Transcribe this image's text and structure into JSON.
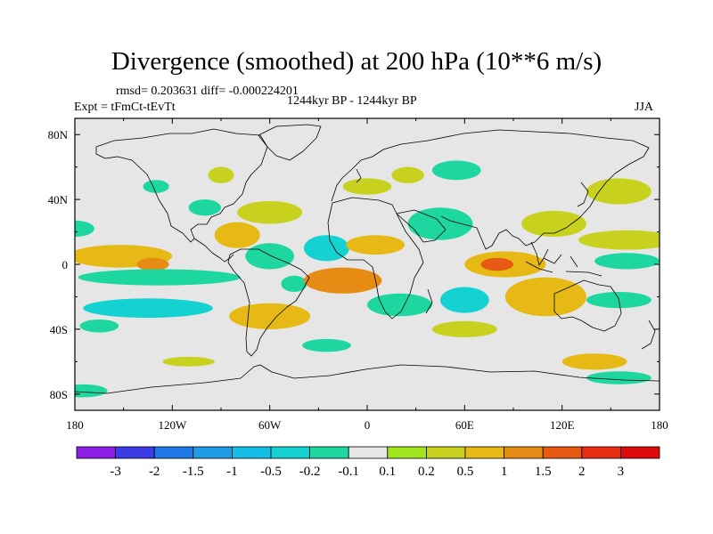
{
  "chart_data": {
    "type": "heatmap",
    "title": "Divergence (smoothed) at 200 hPa (10**6 m/s)",
    "stats": "rmsd= 0.203631 diff= -0.000224201",
    "experiment": "Expt = tFmCt-tEvTt",
    "period": "1244kyr BP - 1244kyr BP",
    "season": "JJA",
    "x_axis": {
      "range": [
        -180,
        180
      ],
      "ticks": [
        -180,
        -120,
        -60,
        0,
        60,
        120,
        180
      ],
      "tick_labels": [
        "180",
        "120W",
        "60W",
        "0",
        "60E",
        "120E",
        "180"
      ]
    },
    "y_axis": {
      "range": [
        -90,
        90
      ],
      "ticks": [
        80,
        40,
        0,
        -40,
        -80
      ],
      "tick_labels": [
        "80N",
        "40N",
        "0",
        "40S",
        "80S"
      ]
    },
    "colorbar": {
      "labels": [
        "-3",
        "-2",
        "-1.5",
        "-1",
        "-0.5",
        "-0.2",
        "-0.1",
        "0.1",
        "0.2",
        "0.5",
        "1",
        "1.5",
        "2",
        "3"
      ],
      "colors": [
        "#8c1ee6",
        "#3c3ce6",
        "#1e78e6",
        "#1e9ae6",
        "#14bee6",
        "#14d2d2",
        "#1ed7a0",
        "#e6e6e6",
        "#a0e61e",
        "#c8d21e",
        "#e6b914",
        "#e68c14",
        "#e65a14",
        "#e62d14",
        "#dc0a0a"
      ]
    },
    "features": [
      {
        "lon": -180,
        "lat": 22,
        "rx": 12,
        "ry": 5,
        "level": -0.2
      },
      {
        "lon": -152,
        "lat": 5,
        "rx": 32,
        "ry": 7,
        "level": 0.5
      },
      {
        "lon": -132,
        "lat": 0,
        "rx": 10,
        "ry": 4,
        "level": 1.0
      },
      {
        "lon": -128,
        "lat": -8,
        "rx": 50,
        "ry": 5,
        "level": -0.2
      },
      {
        "lon": -135,
        "lat": -27,
        "rx": 40,
        "ry": 6,
        "level": -0.5
      },
      {
        "lon": -165,
        "lat": -38,
        "rx": 12,
        "ry": 4,
        "level": -0.2
      },
      {
        "lon": -110,
        "lat": -60,
        "rx": 16,
        "ry": 3,
        "level": 0.2
      },
      {
        "lon": -80,
        "lat": 18,
        "rx": 14,
        "ry": 8,
        "level": 0.5
      },
      {
        "lon": -60,
        "lat": 5,
        "rx": 15,
        "ry": 8,
        "level": -0.2
      },
      {
        "lon": -60,
        "lat": 32,
        "rx": 20,
        "ry": 7,
        "level": 0.2
      },
      {
        "lon": -90,
        "lat": 55,
        "rx": 8,
        "ry": 5,
        "level": 0.2
      },
      {
        "lon": -100,
        "lat": 35,
        "rx": 10,
        "ry": 5,
        "level": -0.2
      },
      {
        "lon": -60,
        "lat": -32,
        "rx": 25,
        "ry": 8,
        "level": 0.5
      },
      {
        "lon": -45,
        "lat": -12,
        "rx": 8,
        "ry": 5,
        "level": -0.2
      },
      {
        "lon": -15,
        "lat": -10,
        "rx": 24,
        "ry": 8,
        "level": 1.0
      },
      {
        "lon": -25,
        "lat": 10,
        "rx": 14,
        "ry": 8,
        "level": -0.5
      },
      {
        "lon": 5,
        "lat": 12,
        "rx": 18,
        "ry": 6,
        "level": 0.5
      },
      {
        "lon": 20,
        "lat": -25,
        "rx": 20,
        "ry": 7,
        "level": -0.2
      },
      {
        "lon": 45,
        "lat": 25,
        "rx": 20,
        "ry": 10,
        "level": -0.2
      },
      {
        "lon": 0,
        "lat": 48,
        "rx": 15,
        "ry": 5,
        "level": 0.2
      },
      {
        "lon": 55,
        "lat": 58,
        "rx": 15,
        "ry": 6,
        "level": -0.2
      },
      {
        "lon": 85,
        "lat": 0,
        "rx": 25,
        "ry": 8,
        "level": 0.5
      },
      {
        "lon": 80,
        "lat": 0,
        "rx": 10,
        "ry": 4,
        "level": 1.5
      },
      {
        "lon": 110,
        "lat": -20,
        "rx": 25,
        "ry": 12,
        "level": 0.5
      },
      {
        "lon": 60,
        "lat": -22,
        "rx": 15,
        "ry": 8,
        "level": -0.5
      },
      {
        "lon": 60,
        "lat": -40,
        "rx": 20,
        "ry": 5,
        "level": 0.2
      },
      {
        "lon": 115,
        "lat": 25,
        "rx": 20,
        "ry": 8,
        "level": 0.2
      },
      {
        "lon": 160,
        "lat": 15,
        "rx": 30,
        "ry": 6,
        "level": 0.2
      },
      {
        "lon": 160,
        "lat": 2,
        "rx": 20,
        "ry": 5,
        "level": -0.2
      },
      {
        "lon": 155,
        "lat": 45,
        "rx": 20,
        "ry": 8,
        "level": 0.2
      },
      {
        "lon": 155,
        "lat": -22,
        "rx": 20,
        "ry": 5,
        "level": -0.2
      },
      {
        "lon": 140,
        "lat": -60,
        "rx": 20,
        "ry": 5,
        "level": 0.5
      },
      {
        "lon": 155,
        "lat": -70,
        "rx": 20,
        "ry": 4,
        "level": -0.2
      },
      {
        "lon": -175,
        "lat": -78,
        "rx": 15,
        "ry": 4,
        "level": -0.2
      },
      {
        "lon": -25,
        "lat": -50,
        "rx": 15,
        "ry": 4,
        "level": -0.2
      },
      {
        "lon": 25,
        "lat": 55,
        "rx": 10,
        "ry": 5,
        "level": 0.2
      },
      {
        "lon": -130,
        "lat": 48,
        "rx": 8,
        "ry": 4,
        "level": -0.2
      }
    ]
  }
}
